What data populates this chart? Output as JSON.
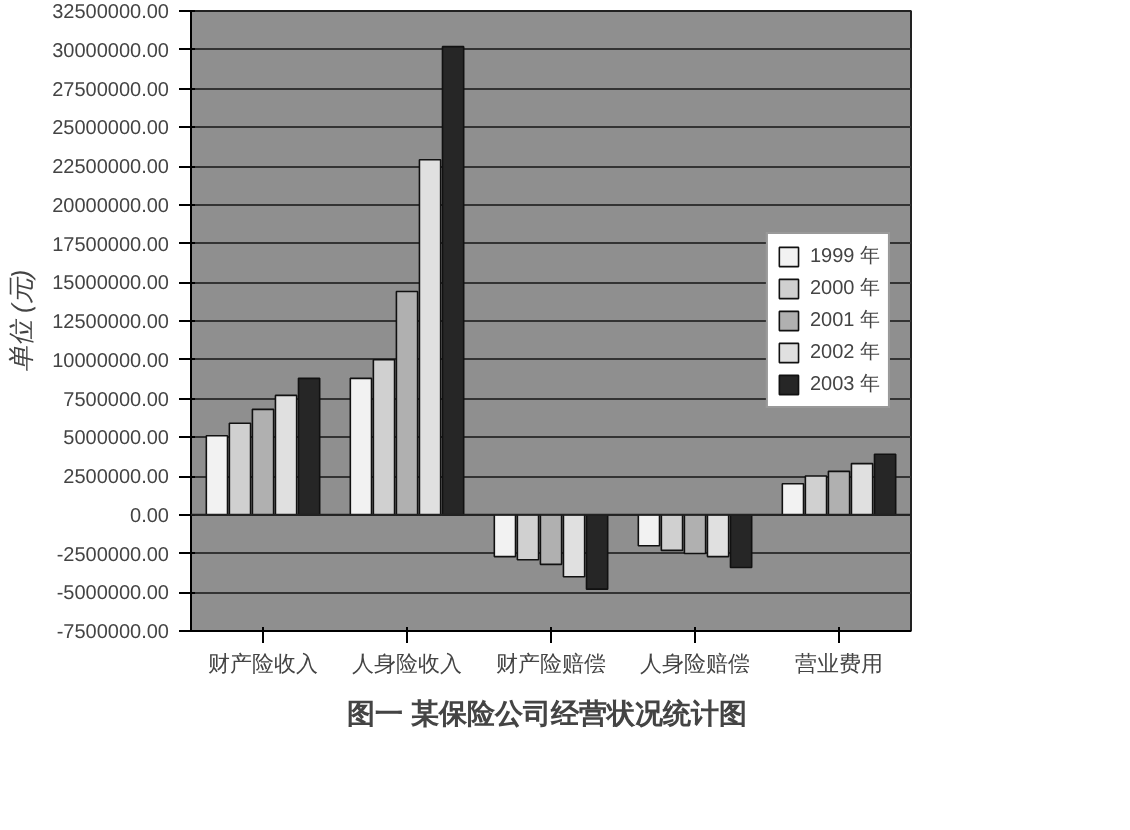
{
  "chart_data": {
    "type": "bar",
    "title": "图一  某保险公司经营状况统计图",
    "ylabel": "单位 (元)",
    "categories": [
      "财产险收入",
      "人身险收入",
      "财产险赔偿",
      "人身险赔偿",
      "营业费用"
    ],
    "series": [
      {
        "name": "1999 年",
        "color": "#f2f2f2",
        "values": [
          5100000,
          8800000,
          -2700000,
          -2000000,
          2000000
        ]
      },
      {
        "name": "2000 年",
        "color": "#d0d0d0",
        "values": [
          5900000,
          10000000,
          -2900000,
          -2300000,
          2500000
        ]
      },
      {
        "name": "2001 年",
        "color": "#b0b0b0",
        "values": [
          6800000,
          14400000,
          -3200000,
          -2500000,
          2800000
        ]
      },
      {
        "name": "2002 年",
        "color": "#e0e0e0",
        "values": [
          7700000,
          22900000,
          -4000000,
          -2700000,
          3300000
        ]
      },
      {
        "name": "2003 年",
        "color": "#262626",
        "values": [
          8800000,
          30200000,
          -4800000,
          -3400000,
          3900000
        ]
      }
    ],
    "ylim": [
      -7500000,
      32500000
    ],
    "yticks": [
      {
        "value": -7500000,
        "label": "-7500000.00"
      },
      {
        "value": -5000000,
        "label": "-5000000.00"
      },
      {
        "value": -2500000,
        "label": "-2500000.00"
      },
      {
        "value": 0,
        "label": "0.00"
      },
      {
        "value": 2500000,
        "label": "2500000.00"
      },
      {
        "value": 5000000,
        "label": "5000000.00"
      },
      {
        "value": 7500000,
        "label": "7500000.00"
      },
      {
        "value": 10000000,
        "label": "10000000.00"
      },
      {
        "value": 12500000,
        "label": "12500000.00"
      },
      {
        "value": 15000000,
        "label": "15000000.00"
      },
      {
        "value": 17500000,
        "label": "17500000.00"
      },
      {
        "value": 20000000,
        "label": "20000000.00"
      },
      {
        "value": 22500000,
        "label": "22500000.00"
      },
      {
        "value": 25000000,
        "label": "25000000.00"
      },
      {
        "value": 27500000,
        "label": "27500000.00"
      },
      {
        "value": 30000000,
        "label": "30000000.00"
      },
      {
        "value": 32500000,
        "label": "32500000.00"
      }
    ],
    "grid": "y",
    "legend": "right"
  }
}
